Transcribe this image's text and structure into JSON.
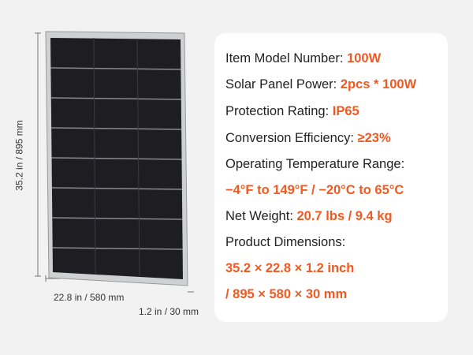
{
  "dimensions": {
    "height": "35.2 in / 895 mm",
    "width": "22.8 in / 580 mm",
    "depth": "1.2 in / 30 mm"
  },
  "specs": [
    {
      "label": "Item Model Number:",
      "value": "100W"
    },
    {
      "label": "Solar Panel Power:",
      "value": "2pcs * 100W"
    },
    {
      "label": "Protection Rating:",
      "value": "IP65"
    },
    {
      "label": "Conversion Efficiency:",
      "value": "≥23%"
    },
    {
      "label": "Operating Temperature Range:",
      "value": "−4°F to 149°F / −20°C to 65°C"
    },
    {
      "label": "Net Weight:",
      "value": "20.7 lbs / 9.4 kg"
    },
    {
      "label": "Product Dimensions:",
      "value": "35.2 × 22.8 × 1.2 inch",
      "value_2": "/ 895 × 580 × 30 mm"
    }
  ]
}
